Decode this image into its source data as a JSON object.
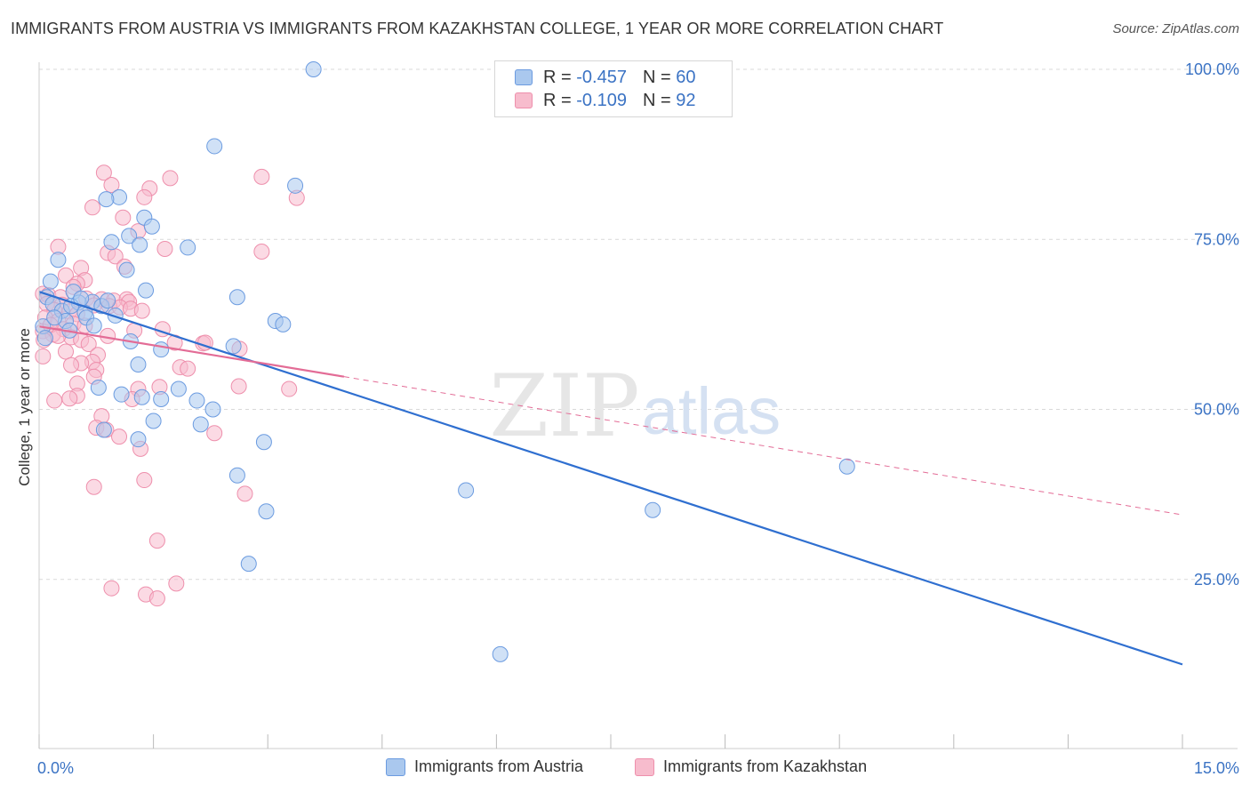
{
  "title": "IMMIGRANTS FROM AUSTRIA VS IMMIGRANTS FROM KAZAKHSTAN COLLEGE, 1 YEAR OR MORE CORRELATION CHART",
  "source": "Source: ZipAtlas.com",
  "watermark": {
    "zip": "ZIP",
    "atlas": "atlas"
  },
  "legend": {
    "austria": {
      "r_label": "R =",
      "r_value": "-0.457",
      "n_label": "N =",
      "n_value": "60"
    },
    "kazakhstan": {
      "r_label": "R =",
      "r_value": "-0.109",
      "n_label": "N =",
      "n_value": "92"
    }
  },
  "bottom_legend": {
    "austria": "Immigrants from Austria",
    "kazakhstan": "Immigrants from Kazakhstan"
  },
  "colors": {
    "austria_fill": "#aac8ee",
    "austria_stroke": "#6b9be0",
    "austria_line": "#2f6fd0",
    "kazakhstan_fill": "#f7bccd",
    "kazakhstan_stroke": "#ee8fac",
    "kazakhstan_line": "#e36c96",
    "axis_text": "#3b73c4",
    "grid": "#d9d9d9"
  },
  "chart_data": {
    "type": "scatter",
    "title": "IMMIGRANTS FROM AUSTRIA VS IMMIGRANTS FROM KAZAKHSTAN COLLEGE, 1 YEAR OR MORE CORRELATION CHART",
    "xlabel": "",
    "ylabel": "College, 1 year or more",
    "xlim": [
      0,
      15
    ],
    "ylim": [
      0,
      105
    ],
    "x_tick_labels": [
      {
        "x": 0,
        "label": "0.0%"
      },
      {
        "x": 15,
        "label": "15.0%"
      }
    ],
    "x_minor_ticks": [
      0,
      1.5,
      3,
      4.5,
      6,
      7.5,
      9,
      10.5,
      12,
      13.5,
      15
    ],
    "y_ticks": [
      {
        "y": 25,
        "label": "25.0%"
      },
      {
        "y": 50,
        "label": "50.0%"
      },
      {
        "y": 75,
        "label": "75.0%"
      },
      {
        "y": 100,
        "label": "100.0%"
      }
    ],
    "grid": true,
    "series": [
      {
        "name": "Immigrants from Austria",
        "R": -0.457,
        "N": 60,
        "trend": {
          "x0": 0,
          "y0": 67.3,
          "x1": 15,
          "y1": 12.5,
          "dashed_from": null
        },
        "points": [
          [
            3.6,
            100
          ],
          [
            2.3,
            88.7
          ],
          [
            3.36,
            82.9
          ],
          [
            1.05,
            81.2
          ],
          [
            0.88,
            80.9
          ],
          [
            1.38,
            78.2
          ],
          [
            1.48,
            76.9
          ],
          [
            1.18,
            75.5
          ],
          [
            0.95,
            74.6
          ],
          [
            1.32,
            74.2
          ],
          [
            1.95,
            73.8
          ],
          [
            0.25,
            72.0
          ],
          [
            1.15,
            70.5
          ],
          [
            0.15,
            68.8
          ],
          [
            1.4,
            67.5
          ],
          [
            0.45,
            67.3
          ],
          [
            0.1,
            66.5
          ],
          [
            2.6,
            66.5
          ],
          [
            0.7,
            65.8
          ],
          [
            0.52,
            65.7
          ],
          [
            0.18,
            65.5
          ],
          [
            0.82,
            65.2
          ],
          [
            0.3,
            64.5
          ],
          [
            0.6,
            64.2
          ],
          [
            1.0,
            63.8
          ],
          [
            0.62,
            63.5
          ],
          [
            0.35,
            63.0
          ],
          [
            3.1,
            63.0
          ],
          [
            3.2,
            62.5
          ],
          [
            0.72,
            62.3
          ],
          [
            0.05,
            62.2
          ],
          [
            1.2,
            60.0
          ],
          [
            1.6,
            58.8
          ],
          [
            2.55,
            59.3
          ],
          [
            1.3,
            56.6
          ],
          [
            0.78,
            53.2
          ],
          [
            1.83,
            53.0
          ],
          [
            1.08,
            52.2
          ],
          [
            1.35,
            51.8
          ],
          [
            1.6,
            51.5
          ],
          [
            2.07,
            51.3
          ],
          [
            2.28,
            50.0
          ],
          [
            1.5,
            48.3
          ],
          [
            2.12,
            47.8
          ],
          [
            0.85,
            47.0
          ],
          [
            1.3,
            45.6
          ],
          [
            2.95,
            45.2
          ],
          [
            2.6,
            40.3
          ],
          [
            5.6,
            38.1
          ],
          [
            2.98,
            35.0
          ],
          [
            8.05,
            35.2
          ],
          [
            10.6,
            41.6
          ],
          [
            2.75,
            27.3
          ],
          [
            6.05,
            14.0
          ],
          [
            0.08,
            60.5
          ],
          [
            0.2,
            63.5
          ],
          [
            0.42,
            65.2
          ],
          [
            0.9,
            66.0
          ],
          [
            0.55,
            66.3
          ],
          [
            0.4,
            61.6
          ]
        ]
      },
      {
        "name": "Immigrants from Kazakhstan",
        "R": -0.109,
        "N": 92,
        "trend": {
          "x0": 0,
          "y0": 62.2,
          "x1": 15,
          "y1": 34.5,
          "dashed_from": 4.0
        },
        "points": [
          [
            0.85,
            84.8
          ],
          [
            2.92,
            84.2
          ],
          [
            1.72,
            84.0
          ],
          [
            0.95,
            83.0
          ],
          [
            1.45,
            82.5
          ],
          [
            1.38,
            81.2
          ],
          [
            3.38,
            81.1
          ],
          [
            0.7,
            79.7
          ],
          [
            1.1,
            78.2
          ],
          [
            1.3,
            76.2
          ],
          [
            0.25,
            73.9
          ],
          [
            1.65,
            73.6
          ],
          [
            2.92,
            73.2
          ],
          [
            0.9,
            73.0
          ],
          [
            1.0,
            72.5
          ],
          [
            1.12,
            71.0
          ],
          [
            0.55,
            70.8
          ],
          [
            0.35,
            69.7
          ],
          [
            0.6,
            69.0
          ],
          [
            0.5,
            68.5
          ],
          [
            0.45,
            68.0
          ],
          [
            0.05,
            67.0
          ],
          [
            0.12,
            66.8
          ],
          [
            0.28,
            66.5
          ],
          [
            0.62,
            66.3
          ],
          [
            0.82,
            66.2
          ],
          [
            0.98,
            66.0
          ],
          [
            1.15,
            66.2
          ],
          [
            1.18,
            65.8
          ],
          [
            0.1,
            65.5
          ],
          [
            0.3,
            65.4
          ],
          [
            0.72,
            65.3
          ],
          [
            0.92,
            65.2
          ],
          [
            1.06,
            65.0
          ],
          [
            1.2,
            64.8
          ],
          [
            0.2,
            64.6
          ],
          [
            0.4,
            64.4
          ],
          [
            0.5,
            64.0
          ],
          [
            0.08,
            63.5
          ],
          [
            0.25,
            63.0
          ],
          [
            0.45,
            62.6
          ],
          [
            0.6,
            62.3
          ],
          [
            0.32,
            61.8
          ],
          [
            0.05,
            61.5
          ],
          [
            1.25,
            61.6
          ],
          [
            0.18,
            61.0
          ],
          [
            0.42,
            60.6
          ],
          [
            0.55,
            60.2
          ],
          [
            1.78,
            59.8
          ],
          [
            2.15,
            59.7
          ],
          [
            0.65,
            59.6
          ],
          [
            2.63,
            58.9
          ],
          [
            0.35,
            58.5
          ],
          [
            0.77,
            58.0
          ],
          [
            0.05,
            57.8
          ],
          [
            0.7,
            57.0
          ],
          [
            0.55,
            56.8
          ],
          [
            0.42,
            56.5
          ],
          [
            1.85,
            56.2
          ],
          [
            1.95,
            56.0
          ],
          [
            0.75,
            55.8
          ],
          [
            0.72,
            54.8
          ],
          [
            0.5,
            53.8
          ],
          [
            1.58,
            53.3
          ],
          [
            2.62,
            53.4
          ],
          [
            1.3,
            53.0
          ],
          [
            3.28,
            53.0
          ],
          [
            0.5,
            52.0
          ],
          [
            0.4,
            51.6
          ],
          [
            1.22,
            51.5
          ],
          [
            0.2,
            51.3
          ],
          [
            0.82,
            49.0
          ],
          [
            0.75,
            47.3
          ],
          [
            0.88,
            47.0
          ],
          [
            2.3,
            46.5
          ],
          [
            1.05,
            46.0
          ],
          [
            1.33,
            44.2
          ],
          [
            1.38,
            39.6
          ],
          [
            0.72,
            38.6
          ],
          [
            2.7,
            37.6
          ],
          [
            1.55,
            30.7
          ],
          [
            1.8,
            24.4
          ],
          [
            0.95,
            23.7
          ],
          [
            1.4,
            22.8
          ],
          [
            1.55,
            22.2
          ],
          [
            0.06,
            60.2
          ],
          [
            0.15,
            62.4
          ],
          [
            0.25,
            60.8
          ],
          [
            1.35,
            64.5
          ],
          [
            2.18,
            59.8
          ],
          [
            0.9,
            60.8
          ],
          [
            1.62,
            61.8
          ]
        ]
      }
    ]
  }
}
